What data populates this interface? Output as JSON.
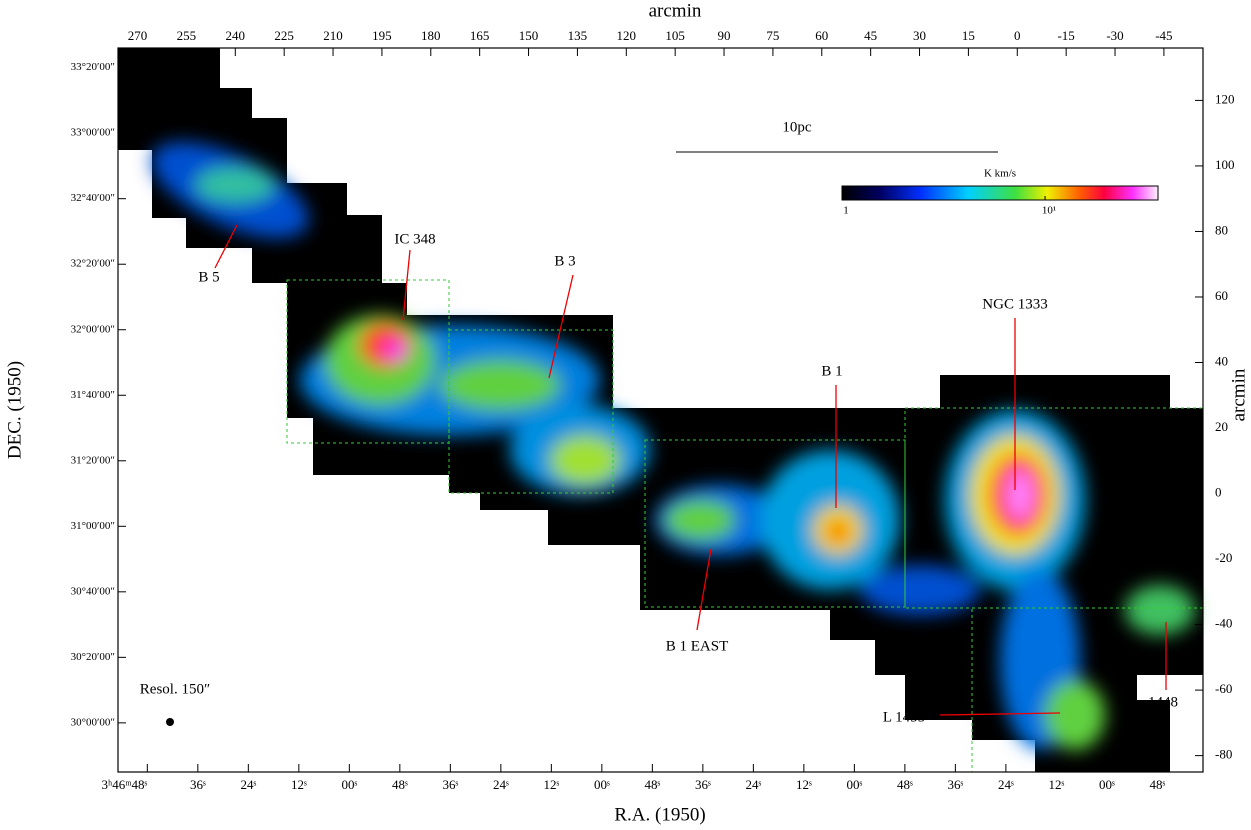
{
  "chart_data": {
    "type": "map",
    "x2label": "arcmin",
    "y2label": "arcmin",
    "xlabel": "R.A. (1950)",
    "ylabel": "DEC. (1950)",
    "xlim": [
      276,
      -57
    ],
    "ylim": [
      -85,
      136
    ],
    "x2ticks": [
      270,
      255,
      240,
      225,
      210,
      195,
      180,
      165,
      150,
      135,
      120,
      105,
      90,
      75,
      60,
      45,
      30,
      15,
      0,
      -15,
      -30,
      -45
    ],
    "y2ticks": [
      120,
      100,
      80,
      60,
      40,
      20,
      0,
      -20,
      -40,
      -60,
      -80
    ],
    "xticks": [
      {
        "value": 267,
        "label": "3ʰ46ᵐ48ˢ"
      },
      {
        "value": 251.5,
        "label": "36ˢ"
      },
      {
        "value": 236,
        "label": "24ˢ"
      },
      {
        "value": 220.5,
        "label": "12ˢ"
      },
      {
        "value": 205,
        "label": "00ˢ"
      },
      {
        "value": 189.5,
        "label": "48ˢ"
      },
      {
        "value": 174,
        "label": "36ˢ"
      },
      {
        "value": 158.5,
        "label": "24ˢ"
      },
      {
        "value": 143,
        "label": "12ˢ"
      },
      {
        "value": 127.5,
        "label": "00ˢ"
      },
      {
        "value": 112,
        "label": "48ˢ"
      },
      {
        "value": 96.5,
        "label": "36ˢ"
      },
      {
        "value": 81,
        "label": "24ˢ"
      },
      {
        "value": 65.5,
        "label": "12ˢ"
      },
      {
        "value": 50,
        "label": "00ˢ"
      },
      {
        "value": 34.5,
        "label": "48ˢ"
      },
      {
        "value": 19,
        "label": "36ˢ"
      },
      {
        "value": 3.5,
        "label": "24ˢ"
      },
      {
        "value": -12,
        "label": "12ˢ"
      },
      {
        "value": -27.5,
        "label": "00ˢ"
      },
      {
        "value": -43,
        "label": "48ˢ"
      }
    ],
    "yticks": [
      {
        "value": 130,
        "label": "33°20′00″"
      },
      {
        "value": 110,
        "label": "33°00′00″"
      },
      {
        "value": 90,
        "label": "32°40′00″"
      },
      {
        "value": 70,
        "label": "32°20′00″"
      },
      {
        "value": 50,
        "label": "32°00′00″"
      },
      {
        "value": 30,
        "label": "31°40′00″"
      },
      {
        "value": 10,
        "label": "31°20′00″"
      },
      {
        "value": -10,
        "label": "31°00′00″"
      },
      {
        "value": -30,
        "label": "30°40′00″"
      },
      {
        "value": -50,
        "label": "30°20′00″"
      },
      {
        "value": -70,
        "label": "30°00′00″"
      }
    ],
    "colorbar": {
      "label": "K km/s",
      "log": true,
      "lim": [
        1,
        36
      ],
      "ticks": [
        1,
        {
          "value": 10,
          "label": "10¹"
        }
      ]
    },
    "annotations": [
      "IC 348",
      "B 5",
      "B 3",
      "NGC 1333",
      "B 1",
      "B 1 EAST",
      "L 1455",
      "1448"
    ],
    "scale_bar": "10pc",
    "beam": "Resol. 150″"
  }
}
